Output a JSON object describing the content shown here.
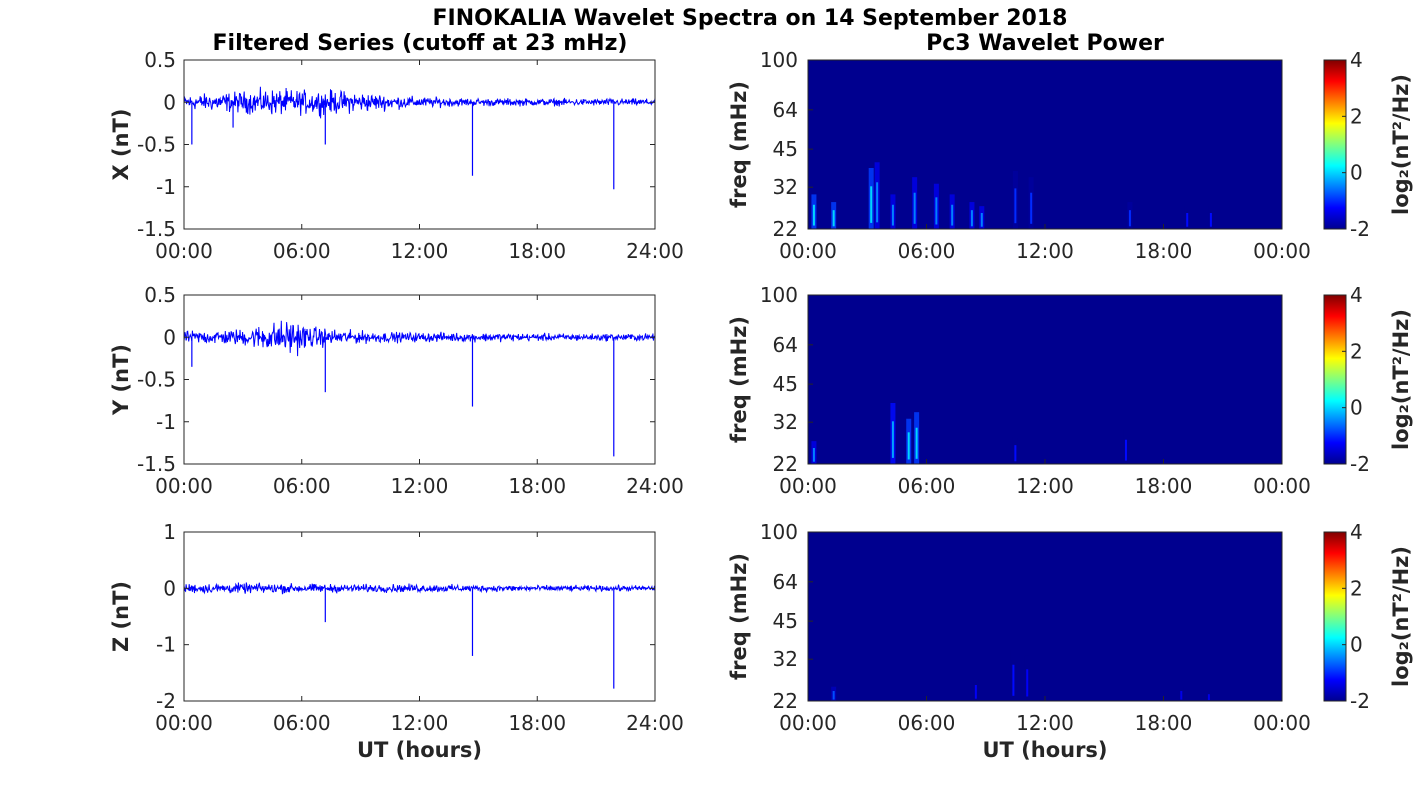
{
  "figure_title": "FINOKALIA Wavelet Spectra on 14 September 2018",
  "left_column_title": "Filtered Series (cutoff at 23 mHz)",
  "right_column_title": "Pc3 Wavelet Power",
  "colors": {
    "trace": "#0000ff",
    "spectrogram_background": "#00008f",
    "axes": "#262626"
  },
  "chart_data": [
    {
      "type": "line",
      "title": "Filtered Series (cutoff at 23 mHz)",
      "xlabel": "",
      "ylabel": "X (nT)",
      "xlim": [
        "00:00",
        "24:00"
      ],
      "ylim": [
        -1.5,
        0.5
      ],
      "xticks": [
        "00:00",
        "06:00",
        "12:00",
        "18:00",
        "24:00"
      ],
      "yticks": [
        "-1.5",
        "-1",
        "-0.5",
        "0",
        "0.5"
      ],
      "ytick_values": [
        -1.5,
        -1,
        -0.5,
        0,
        0.5
      ],
      "series": [
        {
          "noise_envelope_nT": [
            [
              0,
              0.12
            ],
            [
              3,
              0.18
            ],
            [
              4.5,
              0.22
            ],
            [
              6,
              0.2
            ],
            [
              7.5,
              0.2
            ],
            [
              9,
              0.17
            ],
            [
              10.5,
              0.12
            ],
            [
              12,
              0.09
            ],
            [
              14,
              0.07
            ],
            [
              18,
              0.06
            ],
            [
              22,
              0.06
            ],
            [
              24,
              0.06
            ]
          ],
          "spikes": [
            [
              0.4,
              -0.5
            ],
            [
              2.5,
              -0.3
            ],
            [
              7.2,
              -0.5
            ],
            [
              14.7,
              -0.87
            ],
            [
              21.9,
              -1.03
            ]
          ]
        }
      ]
    },
    {
      "type": "line",
      "xlabel": "",
      "ylabel": "Y (nT)",
      "xlim": [
        "00:00",
        "24:00"
      ],
      "ylim": [
        -1.5,
        0.5
      ],
      "xticks": [
        "00:00",
        "06:00",
        "12:00",
        "18:00",
        "24:00"
      ],
      "yticks": [
        "-1.5",
        "-1",
        "-0.5",
        "0",
        "0.5"
      ],
      "ytick_values": [
        -1.5,
        -1,
        -0.5,
        0,
        0.5
      ],
      "series": [
        {
          "noise_envelope_nT": [
            [
              0,
              0.1
            ],
            [
              3,
              0.14
            ],
            [
              4.5,
              0.25
            ],
            [
              5.5,
              0.3
            ],
            [
              6.5,
              0.18
            ],
            [
              8,
              0.12
            ],
            [
              10,
              0.09
            ],
            [
              12,
              0.08
            ],
            [
              16,
              0.07
            ],
            [
              20,
              0.06
            ],
            [
              24,
              0.06
            ]
          ],
          "spikes": [
            [
              0.4,
              -0.35
            ],
            [
              7.2,
              -0.65
            ],
            [
              14.7,
              -0.82
            ],
            [
              21.9,
              -1.41
            ]
          ]
        }
      ]
    },
    {
      "type": "line",
      "xlabel": "UT (hours)",
      "ylabel": "Z (nT)",
      "xlim": [
        "00:00",
        "24:00"
      ],
      "ylim": [
        -2,
        1
      ],
      "xticks": [
        "00:00",
        "06:00",
        "12:00",
        "18:00",
        "24:00"
      ],
      "yticks": [
        "-2",
        "-1",
        "0",
        "1"
      ],
      "ytick_values": [
        -2,
        -1,
        0,
        1
      ],
      "series": [
        {
          "noise_envelope_nT": [
            [
              0,
              0.12
            ],
            [
              3,
              0.13
            ],
            [
              5,
              0.12
            ],
            [
              8,
              0.1
            ],
            [
              12,
              0.1
            ],
            [
              16,
              0.08
            ],
            [
              20,
              0.07
            ],
            [
              24,
              0.07
            ]
          ],
          "spikes": [
            [
              7.2,
              -0.6
            ],
            [
              14.7,
              -1.2
            ],
            [
              21.9,
              -1.78
            ]
          ]
        }
      ]
    },
    {
      "type": "heatmap",
      "title": "Pc3 Wavelet Power",
      "xlabel": "",
      "ylabel": "freq (mHz)",
      "xticks": [
        "00:00",
        "06:00",
        "12:00",
        "18:00",
        "00:00"
      ],
      "yticks": [
        "100",
        "64",
        "45",
        "32",
        "22"
      ],
      "ytick_values": [
        100,
        64,
        45,
        32,
        22
      ],
      "yscale": "log",
      "ylim": [
        22,
        100
      ],
      "colorbar": {
        "label": "log₂(nT²/Hz)",
        "ticks": [
          "4",
          "2",
          "0",
          "-2"
        ],
        "range": [
          -2,
          4
        ]
      },
      "features": [
        [
          0.3,
          30,
          0
        ],
        [
          1.3,
          28,
          0
        ],
        [
          3.2,
          38,
          0
        ],
        [
          3.5,
          40,
          -0.5
        ],
        [
          4.3,
          30,
          -0.5
        ],
        [
          5.4,
          35,
          -0.5
        ],
        [
          6.5,
          33,
          -0.5
        ],
        [
          7.3,
          30,
          -0.5
        ],
        [
          8.3,
          28,
          -0.5
        ],
        [
          8.8,
          27,
          -0.5
        ],
        [
          10.5,
          37,
          -1
        ],
        [
          11.3,
          35,
          -1
        ],
        [
          16.3,
          28,
          -1
        ],
        [
          19.2,
          27,
          -1.2
        ],
        [
          20.4,
          27,
          -1.2
        ]
      ]
    },
    {
      "type": "heatmap",
      "xlabel": "",
      "ylabel": "freq (mHz)",
      "xticks": [
        "00:00",
        "06:00",
        "12:00",
        "18:00",
        "00:00"
      ],
      "yticks": [
        "100",
        "64",
        "45",
        "32",
        "22"
      ],
      "ytick_values": [
        100,
        64,
        45,
        32,
        22
      ],
      "yscale": "log",
      "ylim": [
        22,
        100
      ],
      "colorbar": {
        "label": "log₂(nT²/Hz)",
        "ticks": [
          "4",
          "2",
          "0",
          "-2"
        ],
        "range": [
          -2,
          4
        ]
      },
      "features": [
        [
          0.3,
          27,
          -0.5
        ],
        [
          4.3,
          38,
          -0.3
        ],
        [
          5.1,
          33,
          0
        ],
        [
          5.5,
          35,
          0
        ],
        [
          10.5,
          28,
          -1.2
        ],
        [
          16.1,
          30,
          -1.2
        ]
      ]
    },
    {
      "type": "heatmap",
      "xlabel": "UT (hours)",
      "ylabel": "freq (mHz)",
      "xticks": [
        "00:00",
        "06:00",
        "12:00",
        "18:00",
        "00:00"
      ],
      "yticks": [
        "100",
        "64",
        "45",
        "32",
        "22"
      ],
      "ytick_values": [
        100,
        64,
        45,
        32,
        22
      ],
      "yscale": "log",
      "ylim": [
        22,
        100
      ],
      "colorbar": {
        "label": "log₂(nT²/Hz)",
        "ticks": [
          "4",
          "2",
          "0",
          "-2"
        ],
        "range": [
          -2,
          4
        ]
      },
      "features": [
        [
          1.3,
          25,
          -0.8
        ],
        [
          8.5,
          27,
          -1.3
        ],
        [
          10.4,
          35,
          -1.2
        ],
        [
          11.1,
          33,
          -1.3
        ],
        [
          18.9,
          25,
          -1.4
        ],
        [
          20.3,
          24,
          -1.4
        ]
      ]
    }
  ]
}
